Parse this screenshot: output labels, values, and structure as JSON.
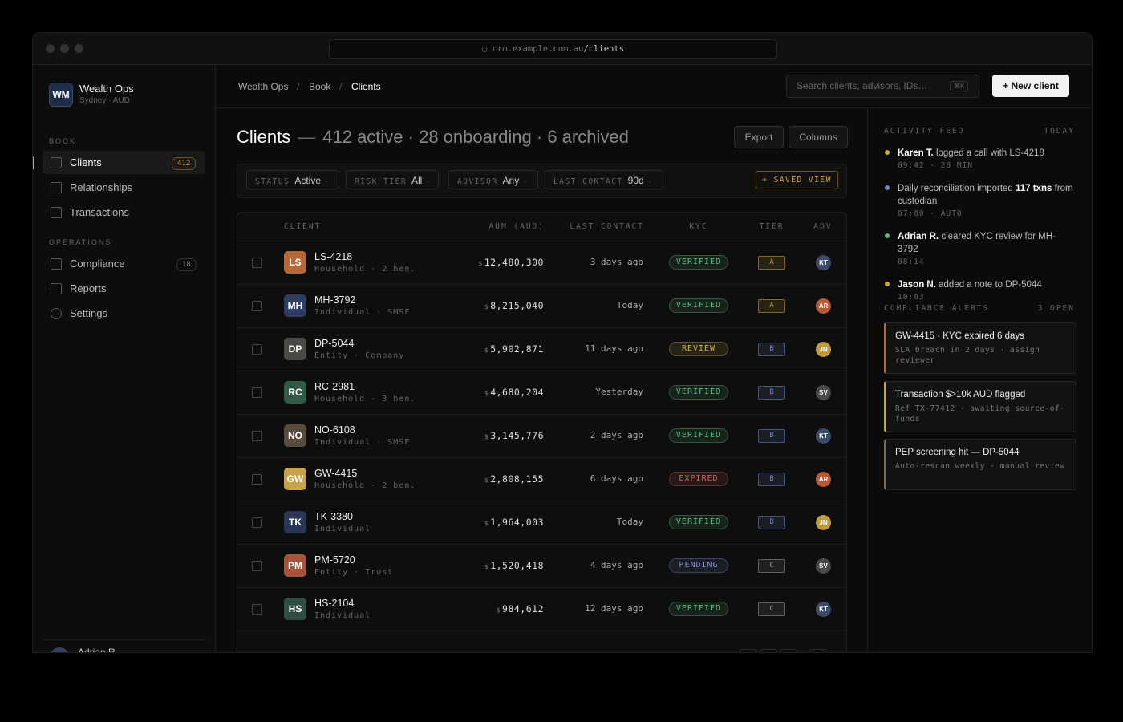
{
  "browser": {
    "url_host": "crm.example.com.au",
    "url_path": "/clients"
  },
  "sidebar": {
    "brand": {
      "initials": "WM",
      "name": "Wealth Ops",
      "sub": "Sydney · AUD"
    },
    "sections": [
      {
        "title": "BOOK",
        "items": [
          {
            "label": "Clients",
            "badge": "412",
            "active": true
          },
          {
            "label": "Relationships"
          },
          {
            "label": "Transactions"
          }
        ]
      },
      {
        "title": "OPERATIONS",
        "items": [
          {
            "label": "Compliance",
            "badge": "18"
          },
          {
            "label": "Reports"
          },
          {
            "label": "Settings"
          }
        ]
      }
    ],
    "user": "Adrian R."
  },
  "topbar": {
    "breadcrumbs": [
      "Wealth Ops",
      "Book",
      "Clients"
    ],
    "search_placeholder": "Search clients, advisors, IDs…",
    "shortcut": "⌘K",
    "new_button": "+ New client"
  },
  "heading": {
    "title": "Clients",
    "dash": "—",
    "summary": "412 active · 28 onboarding · 6 archived",
    "buttons": [
      "Export",
      "Columns"
    ]
  },
  "filters": {
    "chips": [
      {
        "label": "STATUS",
        "value": "Active"
      },
      {
        "label": "RISK TIER",
        "value": "All"
      },
      {
        "label": "ADVISOR",
        "value": "Any"
      },
      {
        "label": "LAST CONTACT",
        "value": "90d"
      }
    ],
    "chip_caret": "·",
    "saved_view": "+ SAVED VIEW"
  },
  "table": {
    "columns": [
      "CLIENT",
      "AUM (AUD)",
      "LAST CONTACT",
      "KYC",
      "TIER",
      "ADV"
    ],
    "currency": "$",
    "rows": [
      {
        "initials": "LS",
        "id": "LS-4218",
        "sub": "Household · 2 ben.",
        "aum": "12,480,300",
        "last": "3 days ago",
        "kyc": "VERIFIED",
        "kyc_color": "#5fbf7f",
        "tier": "A",
        "tier_color": "#d4a83c",
        "adv": "KT",
        "adv_color": "#3b4a66",
        "color": "#b5683a"
      },
      {
        "initials": "MH",
        "id": "MH-3792",
        "sub": "Individual · SMSF",
        "aum": "8,215,040",
        "last": "Today",
        "kyc": "VERIFIED",
        "kyc_color": "#5fbf7f",
        "tier": "A",
        "tier_color": "#d4a83c",
        "adv": "AR",
        "adv_color": "#b55a34",
        "color": "#2e3e63"
      },
      {
        "initials": "DP",
        "id": "DP-5044",
        "sub": "Entity · Company",
        "aum": "5,902,871",
        "last": "11 days ago",
        "kyc": "REVIEW",
        "kyc_color": "#d4b24c",
        "tier": "B",
        "tier_color": "#6f86c4",
        "adv": "JN",
        "adv_color": "#c29a3a",
        "color": "#4a4a44"
      },
      {
        "initials": "RC",
        "id": "RC-2981",
        "sub": "Household · 3 ben.",
        "aum": "4,680,204",
        "last": "Yesterday",
        "kyc": "VERIFIED",
        "kyc_color": "#5fbf7f",
        "tier": "B",
        "tier_color": "#6f86c4",
        "adv": "SV",
        "adv_color": "#4a4a4a",
        "color": "#2f5a45"
      },
      {
        "initials": "NO",
        "id": "NO-6108",
        "sub": "Individual · SMSF",
        "aum": "3,145,776",
        "last": "2 days ago",
        "kyc": "VERIFIED",
        "kyc_color": "#5fbf7f",
        "tier": "B",
        "tier_color": "#6f86c4",
        "adv": "KT",
        "adv_color": "#3b4a66",
        "color": "#5a4a3c"
      },
      {
        "initials": "GW",
        "id": "GW-4415",
        "sub": "Household · 2 ben.",
        "aum": "2,808,155",
        "last": "6 days ago",
        "kyc": "EXPIRED",
        "kyc_color": "#d9645a",
        "tier": "B",
        "tier_color": "#6f86c4",
        "adv": "AR",
        "adv_color": "#b55a34",
        "color": "#c9a24c"
      },
      {
        "initials": "TK",
        "id": "TK-3380",
        "sub": "Individual",
        "aum": "1,964,003",
        "last": "Today",
        "kyc": "VERIFIED",
        "kyc_color": "#5fbf7f",
        "tier": "B",
        "tier_color": "#6f86c4",
        "adv": "JN",
        "adv_color": "#c29a3a",
        "color": "#283654"
      },
      {
        "initials": "PM",
        "id": "PM-5720",
        "sub": "Entity · Trust",
        "aum": "1,520,418",
        "last": "4 days ago",
        "kyc": "PENDING",
        "kyc_color": "#7d93d1",
        "tier": "C",
        "tier_color": "#999999",
        "adv": "SV",
        "adv_color": "#4a4a4a",
        "color": "#a5563a"
      },
      {
        "initials": "HS",
        "id": "HS-2104",
        "sub": "Individual",
        "aum": "984,612",
        "last": "12 days ago",
        "kyc": "VERIFIED",
        "kyc_color": "#5fbf7f",
        "tier": "C",
        "tier_color": "#999999",
        "adv": "KT",
        "adv_color": "#3b4a66",
        "color": "#2f5040"
      }
    ]
  },
  "activity": {
    "title": "ACTIVITY FEED",
    "right": "TODAY",
    "items": [
      {
        "color": "#d4a83c",
        "parts": [
          {
            "text": "Karen T.",
            "strong": true
          },
          {
            "text": " logged a call with LS-4218"
          }
        ],
        "meta": "09:42 · 28 MIN"
      },
      {
        "color": "#6f86c4",
        "parts": [
          {
            "text": "Daily reconciliation imported "
          },
          {
            "text": "117 txns",
            "strong": true
          },
          {
            "text": " from custodian"
          }
        ],
        "meta": "07:00 · AUTO"
      },
      {
        "color": "#5fbf7f",
        "parts": [
          {
            "text": "Adrian R.",
            "strong": true
          },
          {
            "text": " cleared KYC review for MH-3792"
          }
        ],
        "meta": "08:14"
      },
      {
        "color": "#d4a83c",
        "parts": [
          {
            "text": "Jason N.",
            "strong": true
          },
          {
            "text": " added a note to DP-5044"
          }
        ],
        "meta": "10:03"
      }
    ]
  },
  "alerts": {
    "title": "COMPLIANCE ALERTS",
    "count": "3 OPEN",
    "items": [
      {
        "title": "GW-4415 · KYC expired 6 days",
        "detail": "SLA breach in 2 days · assign reviewer",
        "color": "#b5683a"
      },
      {
        "title": "Transaction $>10k AUD flagged",
        "detail": "Ref TX-77412 · awaiting source-of-funds",
        "color": "#c9a24c"
      },
      {
        "title": "PEP screening hit — DP-5044",
        "detail": "Auto-rescan weekly · manual review",
        "color": "#7a6a45"
      }
    ]
  }
}
